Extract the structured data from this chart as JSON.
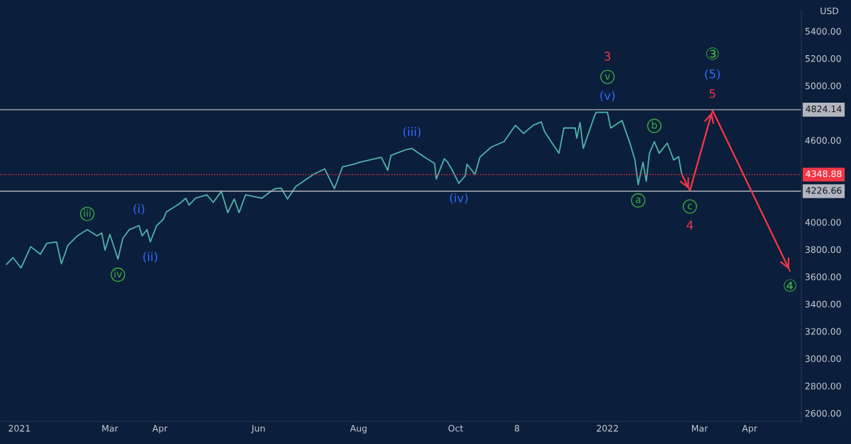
{
  "chart_data": {
    "type": "line",
    "ylabel": "USD",
    "xlim": [
      "2020-12-23",
      "2022-05-03"
    ],
    "xticks": [
      {
        "value": "2021-01-04",
        "label": "2021"
      },
      {
        "value": "2021-03-01",
        "label": "Mar"
      },
      {
        "value": "2021-04-01",
        "label": "Apr"
      },
      {
        "value": "2021-06-01",
        "label": "Jun"
      },
      {
        "value": "2021-08-02",
        "label": "Aug"
      },
      {
        "value": "2021-10-01",
        "label": "Oct"
      },
      {
        "value": "2021-11-08",
        "label": "8"
      },
      {
        "value": "2022-01-03",
        "label": "2022"
      },
      {
        "value": "2022-03-01",
        "label": "Mar"
      },
      {
        "value": "2022-04-01",
        "label": "Apr"
      }
    ],
    "ylim": [
      2540,
      5550
    ],
    "yticks": [
      {
        "value": 2600,
        "label": "2600.00"
      },
      {
        "value": 2800,
        "label": "2800.00"
      },
      {
        "value": 3000,
        "label": "3000.00"
      },
      {
        "value": 3200,
        "label": "3200.00"
      },
      {
        "value": 3400,
        "label": "3400.00"
      },
      {
        "value": 3600,
        "label": "3600.00"
      },
      {
        "value": 3800,
        "label": "3800.00"
      },
      {
        "value": 4000,
        "label": "4000.00"
      },
      {
        "value": 4600,
        "label": "4600.00"
      },
      {
        "value": 5000,
        "label": "5000.00"
      },
      {
        "value": 5200,
        "label": "5200.00"
      },
      {
        "value": 5400,
        "label": "5400.00"
      }
    ],
    "grid": false,
    "legend": false,
    "marker": "none",
    "line_style": "solid",
    "series": [
      {
        "color": "#4fb3a9",
        "x": [
          "2020-12-27",
          "2020-12-31",
          "2021-01-05",
          "2021-01-11",
          "2021-01-17",
          "2021-01-21",
          "2021-01-27",
          "2021-01-30",
          "2021-02-03",
          "2021-02-09",
          "2021-02-15",
          "2021-02-21",
          "2021-02-24",
          "2021-02-26",
          "2021-03-01",
          "2021-03-06",
          "2021-03-09",
          "2021-03-13",
          "2021-03-19",
          "2021-03-21",
          "2021-03-24",
          "2021-03-26",
          "2021-03-30",
          "2021-04-03",
          "2021-04-05",
          "2021-04-13",
          "2021-04-17",
          "2021-04-19",
          "2021-04-23",
          "2021-04-30",
          "2021-05-04",
          "2021-05-09",
          "2021-05-13",
          "2021-05-17",
          "2021-05-20",
          "2021-05-24",
          "2021-06-03",
          "2021-06-11",
          "2021-06-15",
          "2021-06-19",
          "2021-06-24",
          "2021-07-05",
          "2021-07-12",
          "2021-07-18",
          "2021-07-23",
          "2021-07-30",
          "2021-08-03",
          "2021-08-16",
          "2021-08-20",
          "2021-08-22",
          "2021-08-31",
          "2021-09-04",
          "2021-09-12",
          "2021-09-18",
          "2021-09-19",
          "2021-09-24",
          "2021-09-26",
          "2021-09-29",
          "2021-10-03",
          "2021-10-07",
          "2021-10-08",
          "2021-10-13",
          "2021-10-16",
          "2021-10-23",
          "2021-10-31",
          "2021-11-07",
          "2021-11-12",
          "2021-11-18",
          "2021-11-23",
          "2021-11-25",
          "2021-11-30",
          "2021-12-04",
          "2021-12-07",
          "2021-12-14",
          "2021-12-15",
          "2021-12-17",
          "2021-12-19",
          "2021-12-26",
          "2021-12-27",
          "2022-01-03",
          "2022-01-05",
          "2022-01-12",
          "2022-01-17",
          "2022-01-20",
          "2022-01-22",
          "2022-01-25",
          "2022-01-27",
          "2022-01-29",
          "2022-02-01",
          "2022-02-04",
          "2022-02-09",
          "2022-02-13",
          "2022-02-16",
          "2022-02-18"
        ],
        "values": [
          3690,
          3740,
          3665,
          3820,
          3765,
          3845,
          3855,
          3695,
          3830,
          3900,
          3945,
          3900,
          3920,
          3795,
          3910,
          3730,
          3880,
          3945,
          3975,
          3900,
          3945,
          3855,
          3975,
          4020,
          4075,
          4135,
          4175,
          4125,
          4175,
          4200,
          4145,
          4225,
          4070,
          4170,
          4070,
          4200,
          4175,
          4245,
          4250,
          4170,
          4260,
          4350,
          4390,
          4245,
          4405,
          4425,
          4440,
          4475,
          4380,
          4490,
          4530,
          4540,
          4475,
          4430,
          4315,
          4465,
          4440,
          4380,
          4285,
          4340,
          4425,
          4350,
          4475,
          4550,
          4590,
          4710,
          4650,
          4710,
          4735,
          4665,
          4575,
          4505,
          4690,
          4690,
          4615,
          4730,
          4540,
          4780,
          4805,
          4805,
          4690,
          4745,
          4575,
          4455,
          4275,
          4440,
          4300,
          4505,
          4590,
          4505,
          4580,
          4455,
          4480,
          4350
        ]
      },
      {
        "color": "#f23645",
        "x": [
          "2022-02-18",
          "2022-02-23",
          "2022-03-09",
          "2022-04-26"
        ],
        "values": [
          4350,
          4230,
          4820,
          3640
        ]
      }
    ],
    "ref_lines": [
      {
        "axis": "y",
        "value": 4824.14,
        "label": "4824.14",
        "color": "#b2b5be",
        "line_style": "solid"
      },
      {
        "axis": "y",
        "value": 4226.66,
        "label": "4226.66",
        "color": "#b2b5be",
        "line_style": "solid"
      },
      {
        "axis": "y",
        "value": 4348.88,
        "label": "4348.88",
        "color": "#f23645",
        "line_style": "dotted"
      }
    ],
    "annotations": [
      {
        "text": "iii",
        "x": "2021-02-15",
        "y": 3945
      },
      {
        "text": "iv",
        "x": "2021-03-06",
        "y": 3730
      },
      {
        "text": "(i)",
        "x": "2021-03-19",
        "y": 3975
      },
      {
        "text": "(ii)",
        "x": "2021-03-26",
        "y": 3855
      },
      {
        "text": "(iii)",
        "x": "2021-09-04",
        "y": 4540
      },
      {
        "text": "(iv)",
        "x": "2021-10-03",
        "y": 4285
      },
      {
        "text": "(v)",
        "x": "2022-01-03",
        "y": 4805
      },
      "v",
      "3",
      {
        "text": "b",
        "x": "2022-02-01",
        "y": 4590
      },
      {
        "text": "a",
        "x": "2022-01-22",
        "y": 4275
      },
      {
        "text": "c",
        "x": "2022-02-23",
        "y": 4230
      },
      {
        "text": "4",
        "x": "2022-02-23",
        "y": 4230
      },
      {
        "text": "5",
        "x": "2022-03-09",
        "y": 4820
      },
      "(5)",
      "③",
      {
        "text": "④",
        "x": "2022-04-26",
        "y": 3640
      }
    ]
  }
}
